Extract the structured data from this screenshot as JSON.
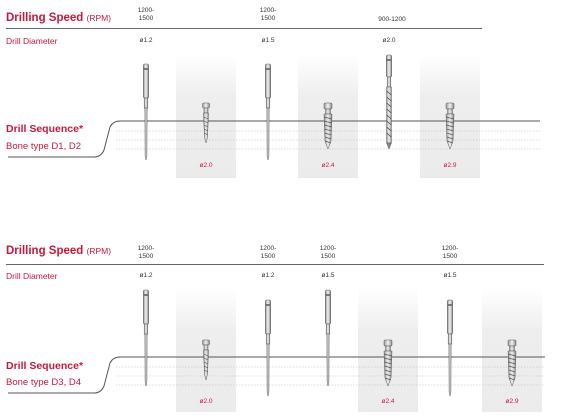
{
  "panels": [
    {
      "title": "Drilling Speed",
      "title_unit": "(RPM)",
      "diameter_label": "Drill Diameter",
      "sequence_label": "Drill Sequence*",
      "bone_label": "Bone type D1, D2",
      "rpm": [
        "1200-\n1500",
        "1200-\n1500",
        "900-1200"
      ],
      "diameters": [
        "ø1.2",
        "ø1.5",
        "ø2.0"
      ],
      "implant_sizes": [
        "ø2.0",
        "ø2.4",
        "ø2.9"
      ]
    },
    {
      "title": "Drilling Speed",
      "title_unit": "(RPM)",
      "diameter_label": "Drill Diameter",
      "sequence_label": "Drill Sequence*",
      "bone_label": "Bone type D3, D4",
      "rpm": [
        "1200-\n1500",
        "1200-\n1500",
        "1200-\n1500",
        "1200-\n1500"
      ],
      "diameters": [
        "ø1.2",
        "ø1.2",
        "ø1.5",
        "ø1.5"
      ],
      "implant_sizes": [
        "ø2.0",
        "ø2.4",
        "ø2.9"
      ]
    }
  ],
  "colors": {
    "accent": "#c8183a",
    "line": "#555555",
    "shade": "#eeeeee"
  }
}
